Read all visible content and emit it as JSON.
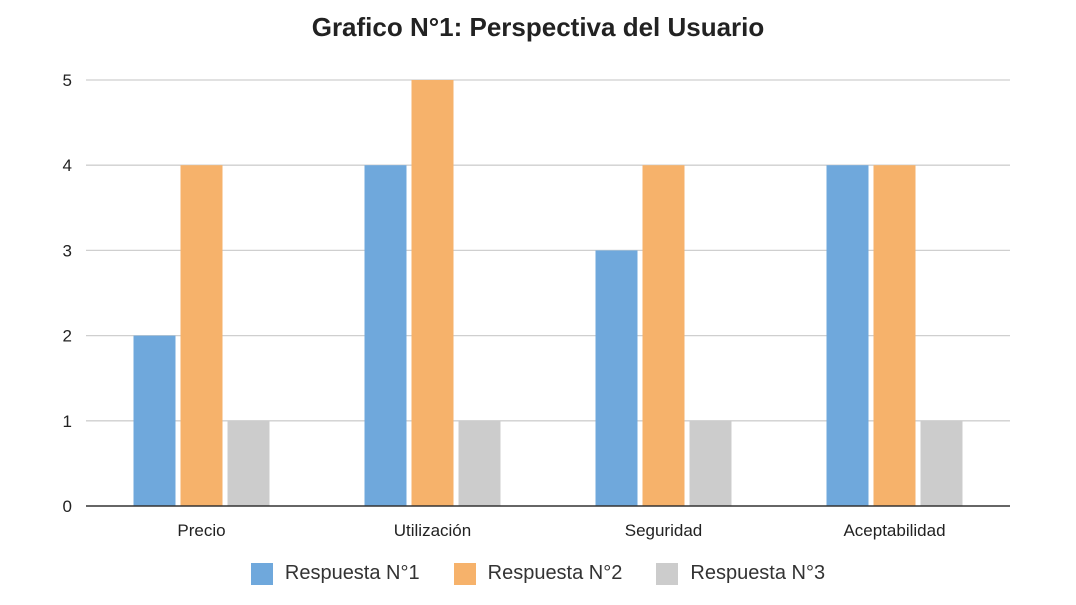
{
  "chart_data": {
    "type": "bar",
    "title": "Grafico N°1: Perspectiva del Usuario",
    "categories": [
      "Precio",
      "Utilización",
      "Seguridad",
      "Aceptabilidad"
    ],
    "series": [
      {
        "name": "Respuesta N°1",
        "values": [
          2,
          4,
          3,
          4
        ],
        "color": "#6fa8dc"
      },
      {
        "name": "Respuesta N°2",
        "values": [
          4,
          5,
          4,
          4
        ],
        "color": "#f6b26b"
      },
      {
        "name": "Respuesta N°3",
        "values": [
          1,
          1,
          1,
          1
        ],
        "color": "#cccccc"
      }
    ],
    "xlabel": "",
    "ylabel": "",
    "ylim": [
      0,
      5
    ],
    "yticks": [
      "0",
      "1",
      "2",
      "3",
      "4",
      "5"
    ],
    "grid": true,
    "legend_position": "bottom"
  }
}
